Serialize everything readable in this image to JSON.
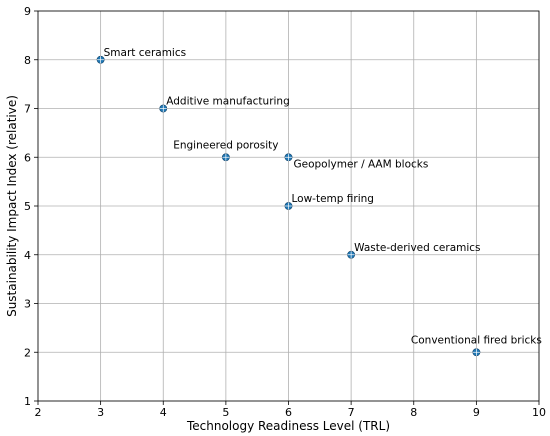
{
  "chart_data": {
    "type": "scatter",
    "title": "",
    "xlabel": "Technology Readiness Level (TRL)",
    "ylabel": "Sustainability Impact Index (relative)",
    "xlim": [
      2,
      10
    ],
    "ylim": [
      1,
      9
    ],
    "xticks": [
      2,
      3,
      4,
      5,
      6,
      7,
      8,
      9,
      10
    ],
    "yticks": [
      1,
      2,
      3,
      4,
      5,
      6,
      7,
      8,
      9
    ],
    "grid": true,
    "marker_color": "#1f77b4",
    "points": [
      {
        "label": "Smart ceramics",
        "x": 3,
        "y": 8,
        "label_pos": "upper-right"
      },
      {
        "label": "Additive manufacturing",
        "x": 4,
        "y": 7,
        "label_pos": "upper-right"
      },
      {
        "label": "Engineered porosity",
        "x": 5,
        "y": 6,
        "label_pos": "above"
      },
      {
        "label": "Geopolymer / AAM blocks",
        "x": 6,
        "y": 6,
        "label_pos": "lower-right"
      },
      {
        "label": "Low-temp firing",
        "x": 6,
        "y": 5,
        "label_pos": "upper-right"
      },
      {
        "label": "Waste-derived ceramics",
        "x": 7,
        "y": 4,
        "label_pos": "upper-right"
      },
      {
        "label": "Conventional fired bricks",
        "x": 9,
        "y": 2,
        "label_pos": "above"
      }
    ]
  }
}
